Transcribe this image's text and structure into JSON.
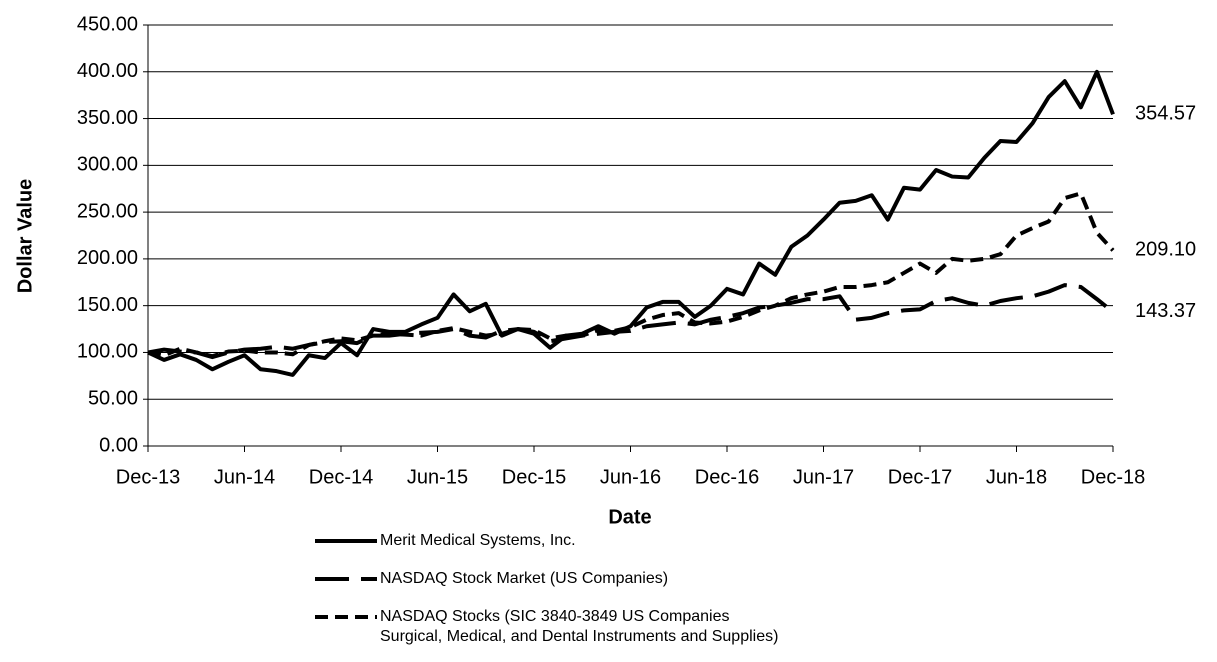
{
  "chart_data": {
    "type": "line",
    "x_label": "Date",
    "y_label": "Dollar Value",
    "categories": [
      "Dec-13",
      null,
      null,
      null,
      null,
      null,
      "Jun-14",
      null,
      null,
      null,
      null,
      null,
      "Dec-14",
      null,
      null,
      null,
      null,
      null,
      "Jun-15",
      null,
      null,
      null,
      null,
      null,
      "Dec-15",
      null,
      null,
      null,
      null,
      null,
      "Jun-16",
      null,
      null,
      null,
      null,
      null,
      "Dec-16",
      null,
      null,
      null,
      null,
      null,
      "Jun-17",
      null,
      null,
      null,
      null,
      null,
      "Dec-17",
      null,
      null,
      null,
      null,
      null,
      "Jun-18",
      null,
      null,
      null,
      null,
      null,
      "Dec-18"
    ],
    "series": [
      {
        "name": "Merit Medical Systems, Inc.",
        "color": "#000000",
        "dash": "solid",
        "values": [
          100,
          92,
          98,
          92,
          82,
          90,
          97,
          82,
          80,
          76,
          97,
          94,
          110,
          97,
          125,
          122,
          122,
          130,
          137,
          162,
          144,
          152,
          118,
          125,
          120,
          105,
          118,
          120,
          128,
          120,
          128,
          148,
          154,
          154,
          138,
          150,
          168,
          162,
          195,
          183,
          213,
          225,
          242,
          260,
          262,
          268,
          242,
          276,
          274,
          295,
          288,
          287,
          308,
          326,
          325,
          345,
          373,
          390,
          362,
          400,
          354.57
        ],
        "value_labels": [
          null,
          null,
          null,
          null,
          null,
          null,
          null,
          null,
          null,
          null,
          null,
          null,
          null,
          null,
          null,
          null,
          null,
          null,
          null,
          null,
          null,
          null,
          null,
          null,
          null,
          null,
          null,
          null,
          null,
          null,
          null,
          null,
          null,
          null,
          null,
          null,
          null,
          null,
          null,
          null,
          null,
          null,
          null,
          null,
          null,
          null,
          null,
          null,
          null,
          null,
          null,
          null,
          null,
          null,
          null,
          null,
          null,
          null,
          null,
          null,
          "354.57"
        ]
      },
      {
        "name": "NASDAQ Stock Market (US Companies)",
        "color": "#000000",
        "dash": "long",
        "values": [
          100,
          103,
          101,
          100,
          95,
          100,
          103,
          104,
          106,
          104,
          108,
          111,
          112,
          110,
          118,
          118,
          120,
          121,
          122,
          125,
          118,
          116,
          123,
          125,
          122,
          112,
          115,
          118,
          120,
          122,
          123,
          128,
          130,
          132,
          130,
          135,
          138,
          142,
          148,
          150,
          153,
          157,
          157,
          160,
          135,
          137,
          142,
          145,
          146,
          155,
          158,
          153,
          150,
          155,
          158,
          160,
          165,
          172,
          170,
          157,
          143.37
        ],
        "value_labels": [
          null,
          null,
          null,
          null,
          null,
          null,
          null,
          null,
          null,
          null,
          null,
          null,
          null,
          null,
          null,
          null,
          null,
          null,
          null,
          null,
          null,
          null,
          null,
          null,
          null,
          null,
          null,
          null,
          null,
          null,
          null,
          null,
          null,
          null,
          null,
          null,
          null,
          null,
          null,
          null,
          null,
          null,
          null,
          null,
          null,
          null,
          null,
          null,
          null,
          null,
          null,
          null,
          null,
          null,
          null,
          null,
          null,
          null,
          null,
          null,
          "143.37"
        ]
      },
      {
        "name": "NASDAQ Stocks (SIC 3840-3849 US Companies\nSurgical, Medical, and Dental Instruments and Supplies)",
        "color": "#000000",
        "dash": "short",
        "values": [
          100,
          97,
          104,
          100,
          96,
          101,
          102,
          100,
          100,
          98,
          108,
          112,
          115,
          113,
          118,
          120,
          119,
          118,
          123,
          126,
          122,
          118,
          120,
          125,
          124,
          115,
          118,
          118,
          124,
          123,
          127,
          135,
          140,
          142,
          132,
          131,
          133,
          138,
          145,
          150,
          158,
          162,
          165,
          170,
          170,
          172,
          175,
          185,
          195,
          185,
          200,
          198,
          200,
          205,
          225,
          233,
          240,
          265,
          270,
          228,
          209.1
        ],
        "value_labels": [
          null,
          null,
          null,
          null,
          null,
          null,
          null,
          null,
          null,
          null,
          null,
          null,
          null,
          null,
          null,
          null,
          null,
          null,
          null,
          null,
          null,
          null,
          null,
          null,
          null,
          null,
          null,
          null,
          null,
          null,
          null,
          null,
          null,
          null,
          null,
          null,
          null,
          null,
          null,
          null,
          null,
          null,
          null,
          null,
          null,
          null,
          null,
          null,
          null,
          null,
          null,
          null,
          null,
          null,
          null,
          null,
          null,
          null,
          null,
          null,
          "209.10"
        ]
      }
    ],
    "ylim": [
      0,
      450
    ],
    "yticks": [
      {
        "value": 0,
        "label": "0.00"
      },
      {
        "value": 50,
        "label": "50.00"
      },
      {
        "value": 100,
        "label": "100.00"
      },
      {
        "value": 150,
        "label": "150.00"
      },
      {
        "value": 200,
        "label": "200.00"
      },
      {
        "value": 250,
        "label": "250.00"
      },
      {
        "value": 300,
        "label": "300.00"
      },
      {
        "value": 350,
        "label": "350.00"
      },
      {
        "value": 400,
        "label": "400.00"
      },
      {
        "value": 450,
        "label": "450.00"
      }
    ],
    "grid": true,
    "legend": "bottom"
  }
}
